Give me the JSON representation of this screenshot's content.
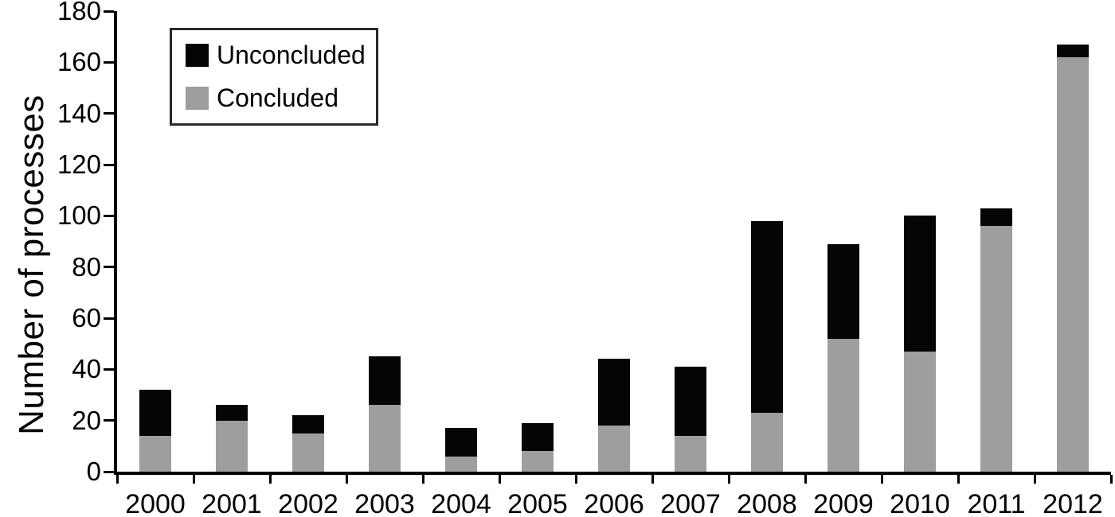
{
  "chart_data": {
    "type": "bar",
    "stacked": true,
    "ylabel": "Number of processes",
    "xlabel": "",
    "title": "",
    "categories": [
      "2000",
      "2001",
      "2002",
      "2003",
      "2004",
      "2005",
      "2006",
      "2007",
      "2008",
      "2009",
      "2010",
      "2011",
      "2012"
    ],
    "series": [
      {
        "name": "Unconcluded",
        "color": "#050505",
        "values": [
          18,
          6,
          7,
          19,
          11,
          11,
          26,
          27,
          75,
          37,
          53,
          7,
          5
        ]
      },
      {
        "name": "Concluded",
        "color": "#9e9e9e",
        "values": [
          14,
          20,
          15,
          26,
          6,
          8,
          18,
          14,
          23,
          52,
          47,
          96,
          162
        ]
      }
    ],
    "totals": [
      32,
      26,
      22,
      45,
      17,
      19,
      44,
      41,
      98,
      89,
      100,
      103,
      167
    ],
    "ylim": [
      0,
      180
    ],
    "yticks": [
      0,
      20,
      40,
      60,
      80,
      100,
      120,
      140,
      160,
      180
    ],
    "grid": false,
    "legend_position": "top-left",
    "axis_color": "#000000",
    "background_color": "#ffffff"
  }
}
